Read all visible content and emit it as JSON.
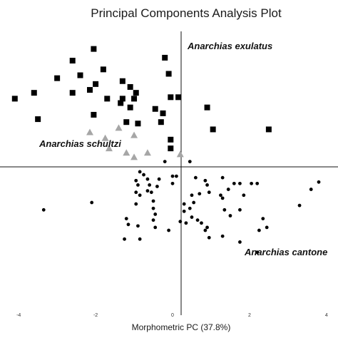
{
  "chart_data": {
    "type": "scatter",
    "title": "Principal Components Analysis Plot",
    "xlabel": "Morphometric PC (37.8%)",
    "ylabel": "",
    "xlim": [
      -4.3,
      4.3
    ],
    "ylim": [
      -5.2,
      4.5
    ],
    "xticks": [
      -4,
      -2,
      0,
      2,
      4
    ],
    "x_tick_labels": [
      "-4",
      "-2",
      "0",
      "2",
      "4"
    ],
    "grid": false,
    "series": [
      {
        "name": "Anarchias exulatus",
        "marker": "square",
        "color": "#000000",
        "points": [
          [
            -2.05,
            3.9
          ],
          [
            -2.6,
            3.5
          ],
          [
            -3.0,
            2.9
          ],
          [
            -1.8,
            3.2
          ],
          [
            -2.4,
            3.0
          ],
          [
            -2.0,
            2.7
          ],
          [
            -2.15,
            2.5
          ],
          [
            -2.6,
            2.4
          ],
          [
            -1.7,
            2.2
          ],
          [
            -1.3,
            2.8
          ],
          [
            -0.2,
            3.6
          ],
          [
            -0.1,
            3.05
          ],
          [
            -1.1,
            2.6
          ],
          [
            -0.95,
            2.4
          ],
          [
            -3.6,
            2.4
          ],
          [
            -4.1,
            2.2
          ],
          [
            -1.3,
            2.2
          ],
          [
            -1.35,
            2.05
          ],
          [
            -1.0,
            2.2
          ],
          [
            -0.05,
            2.25
          ],
          [
            0.15,
            2.25
          ],
          [
            -1.1,
            1.9
          ],
          [
            -0.45,
            1.85
          ],
          [
            -0.25,
            1.7
          ],
          [
            -2.05,
            1.65
          ],
          [
            -3.5,
            1.5
          ],
          [
            -1.2,
            1.4
          ],
          [
            -0.9,
            1.35
          ],
          [
            -0.3,
            1.4
          ],
          [
            0.9,
            1.9
          ],
          [
            1.05,
            1.15
          ],
          [
            2.5,
            1.15
          ],
          [
            -0.05,
            0.8
          ],
          [
            -0.05,
            0.5
          ]
        ]
      },
      {
        "name": "Anarchias schultzi",
        "marker": "triangle",
        "color": "#a6a6a6",
        "points": [
          [
            -1.4,
            1.2
          ],
          [
            -2.15,
            1.05
          ],
          [
            -1.75,
            0.85
          ],
          [
            -1.0,
            0.95
          ],
          [
            -1.65,
            0.5
          ],
          [
            -1.2,
            0.35
          ],
          [
            -0.65,
            0.35
          ],
          [
            -1.0,
            0.2
          ],
          [
            0.2,
            0.3
          ]
        ]
      },
      {
        "name": "Anarchias cantonensis",
        "marker": "circle",
        "color": "#000000",
        "points": [
          [
            -0.2,
            0.05
          ],
          [
            0.45,
            0.05
          ],
          [
            -0.85,
            -0.3
          ],
          [
            -0.75,
            -0.4
          ],
          [
            -0.65,
            -0.55
          ],
          [
            -0.35,
            -0.55
          ],
          [
            0.0,
            -0.45
          ],
          [
            -0.95,
            -0.6
          ],
          [
            -0.9,
            -0.75
          ],
          [
            -0.6,
            -0.75
          ],
          [
            -0.4,
            -0.8
          ],
          [
            -0.65,
            -0.95
          ],
          [
            -0.95,
            -1.0
          ],
          [
            -0.85,
            -1.1
          ],
          [
            -0.55,
            -1.0
          ],
          [
            -0.5,
            -1.3
          ],
          [
            -0.5,
            -1.55
          ],
          [
            -0.45,
            -1.75
          ],
          [
            -0.5,
            -1.95
          ],
          [
            -0.45,
            -2.2
          ],
          [
            -1.15,
            -2.1
          ],
          [
            -0.9,
            -2.15
          ],
          [
            -0.1,
            -2.3
          ],
          [
            0.0,
            -0.7
          ],
          [
            0.1,
            -0.45
          ],
          [
            0.6,
            -0.5
          ],
          [
            0.85,
            -0.6
          ],
          [
            1.3,
            -0.5
          ],
          [
            0.9,
            -0.75
          ],
          [
            0.95,
            -1.0
          ],
          [
            0.7,
            -1.05
          ],
          [
            0.5,
            -1.1
          ],
          [
            0.3,
            -1.4
          ],
          [
            0.55,
            -1.35
          ],
          [
            0.45,
            -1.55
          ],
          [
            0.3,
            -1.65
          ],
          [
            0.2,
            -2.0
          ],
          [
            1.25,
            -1.1
          ],
          [
            1.3,
            -1.2
          ],
          [
            1.6,
            -0.7
          ],
          [
            1.75,
            -0.7
          ],
          [
            2.05,
            -0.7
          ],
          [
            2.2,
            -0.7
          ],
          [
            1.45,
            -0.9
          ],
          [
            1.85,
            -1.1
          ],
          [
            1.35,
            -1.6
          ],
          [
            1.75,
            -1.6
          ],
          [
            1.5,
            -1.8
          ],
          [
            0.5,
            -1.85
          ],
          [
            0.65,
            -1.95
          ],
          [
            0.75,
            -2.05
          ],
          [
            0.35,
            -2.05
          ],
          [
            0.9,
            -2.2
          ],
          [
            2.45,
            -2.2
          ],
          [
            2.25,
            -2.3
          ],
          [
            2.35,
            -1.9
          ],
          [
            3.3,
            -1.45
          ],
          [
            3.6,
            -0.9
          ],
          [
            3.8,
            -0.65
          ],
          [
            0.85,
            -2.3
          ],
          [
            1.3,
            -2.5
          ],
          [
            0.95,
            -2.55
          ],
          [
            1.75,
            -2.7
          ],
          [
            2.2,
            -3.05
          ],
          [
            -1.25,
            -2.6
          ],
          [
            -0.85,
            -2.6
          ],
          [
            -3.35,
            -1.6
          ],
          [
            -2.1,
            -1.35
          ],
          [
            -1.2,
            -1.9
          ],
          [
            -0.95,
            -1.4
          ]
        ]
      }
    ],
    "annotations": [
      {
        "text": "Anarchias exulatus",
        "series": "Anarchias exulatus"
      },
      {
        "text": "Anarchias schultzi",
        "series": "Anarchias schultzi"
      },
      {
        "text": "Anarchias cantone",
        "series": "Anarchias cantonensis"
      }
    ]
  }
}
